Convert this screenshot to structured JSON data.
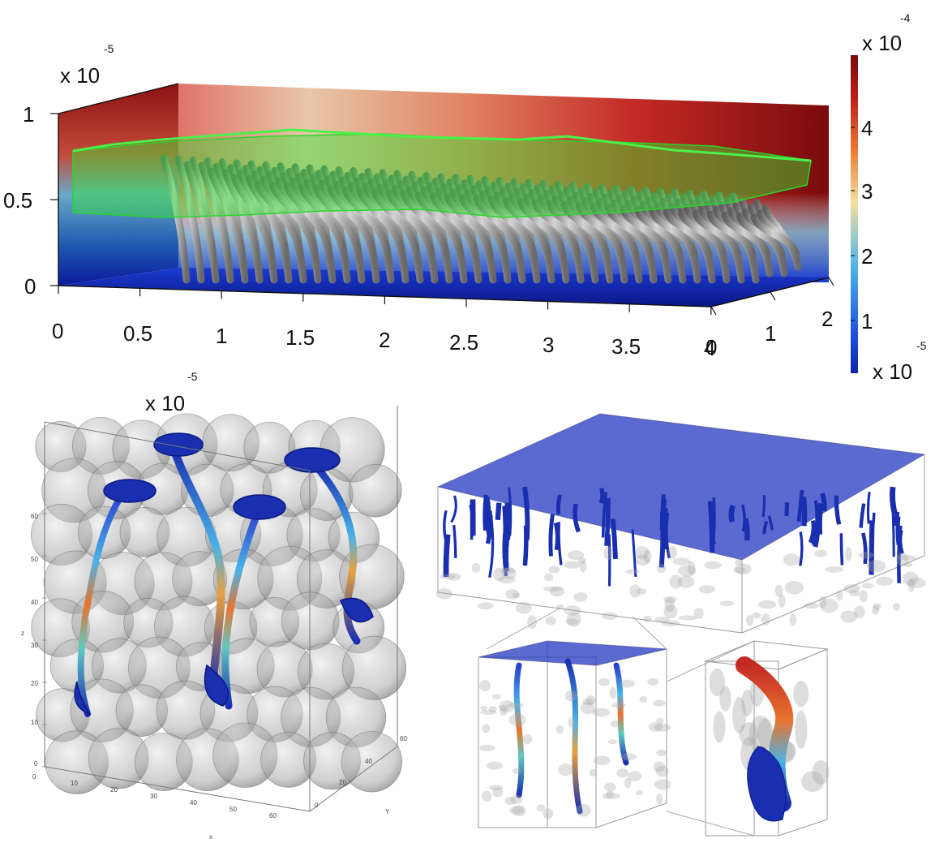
{
  "top_plot": {
    "multiplier_base": "x 10",
    "multiplier_exp": "-5",
    "z_ticks": [
      "0",
      "0.5",
      "1"
    ],
    "x_ticks": [
      "0",
      "0.5",
      "1",
      "1.5",
      "2",
      "2.5",
      "3",
      "3.5",
      "4"
    ],
    "y_ticks": [
      "0",
      "1",
      "2"
    ],
    "colorbar": {
      "top_base": "x 10",
      "top_exp": "-4",
      "ticks": [
        "1",
        "2",
        "3",
        "4"
      ],
      "bottom_base": "x 10",
      "bottom_exp": "-5",
      "colors": [
        "#0b1a9c",
        "#1e52d9",
        "#4ab3e8",
        "#f2e0a0",
        "#e8742e",
        "#b51c1c",
        "#7a0b0b"
      ]
    }
  },
  "bottom_left_plot": {
    "multiplier_base": "x 10",
    "multiplier_exp": "-5",
    "z_ticks": [
      "0",
      "10",
      "20",
      "30",
      "40",
      "50",
      "60"
    ],
    "x_ticks": [
      "0",
      "10",
      "20",
      "30",
      "40",
      "50",
      "60"
    ],
    "y_ticks": [
      "0",
      "20",
      "40",
      "60"
    ],
    "x_label": "x",
    "y_label": "Y",
    "z_label": "z"
  },
  "colors": {
    "fluid_blue": "#1a2fb0",
    "interface_green": "#33e633",
    "grain_gray": "#9a9a9a",
    "hot_red": "#a51212"
  }
}
